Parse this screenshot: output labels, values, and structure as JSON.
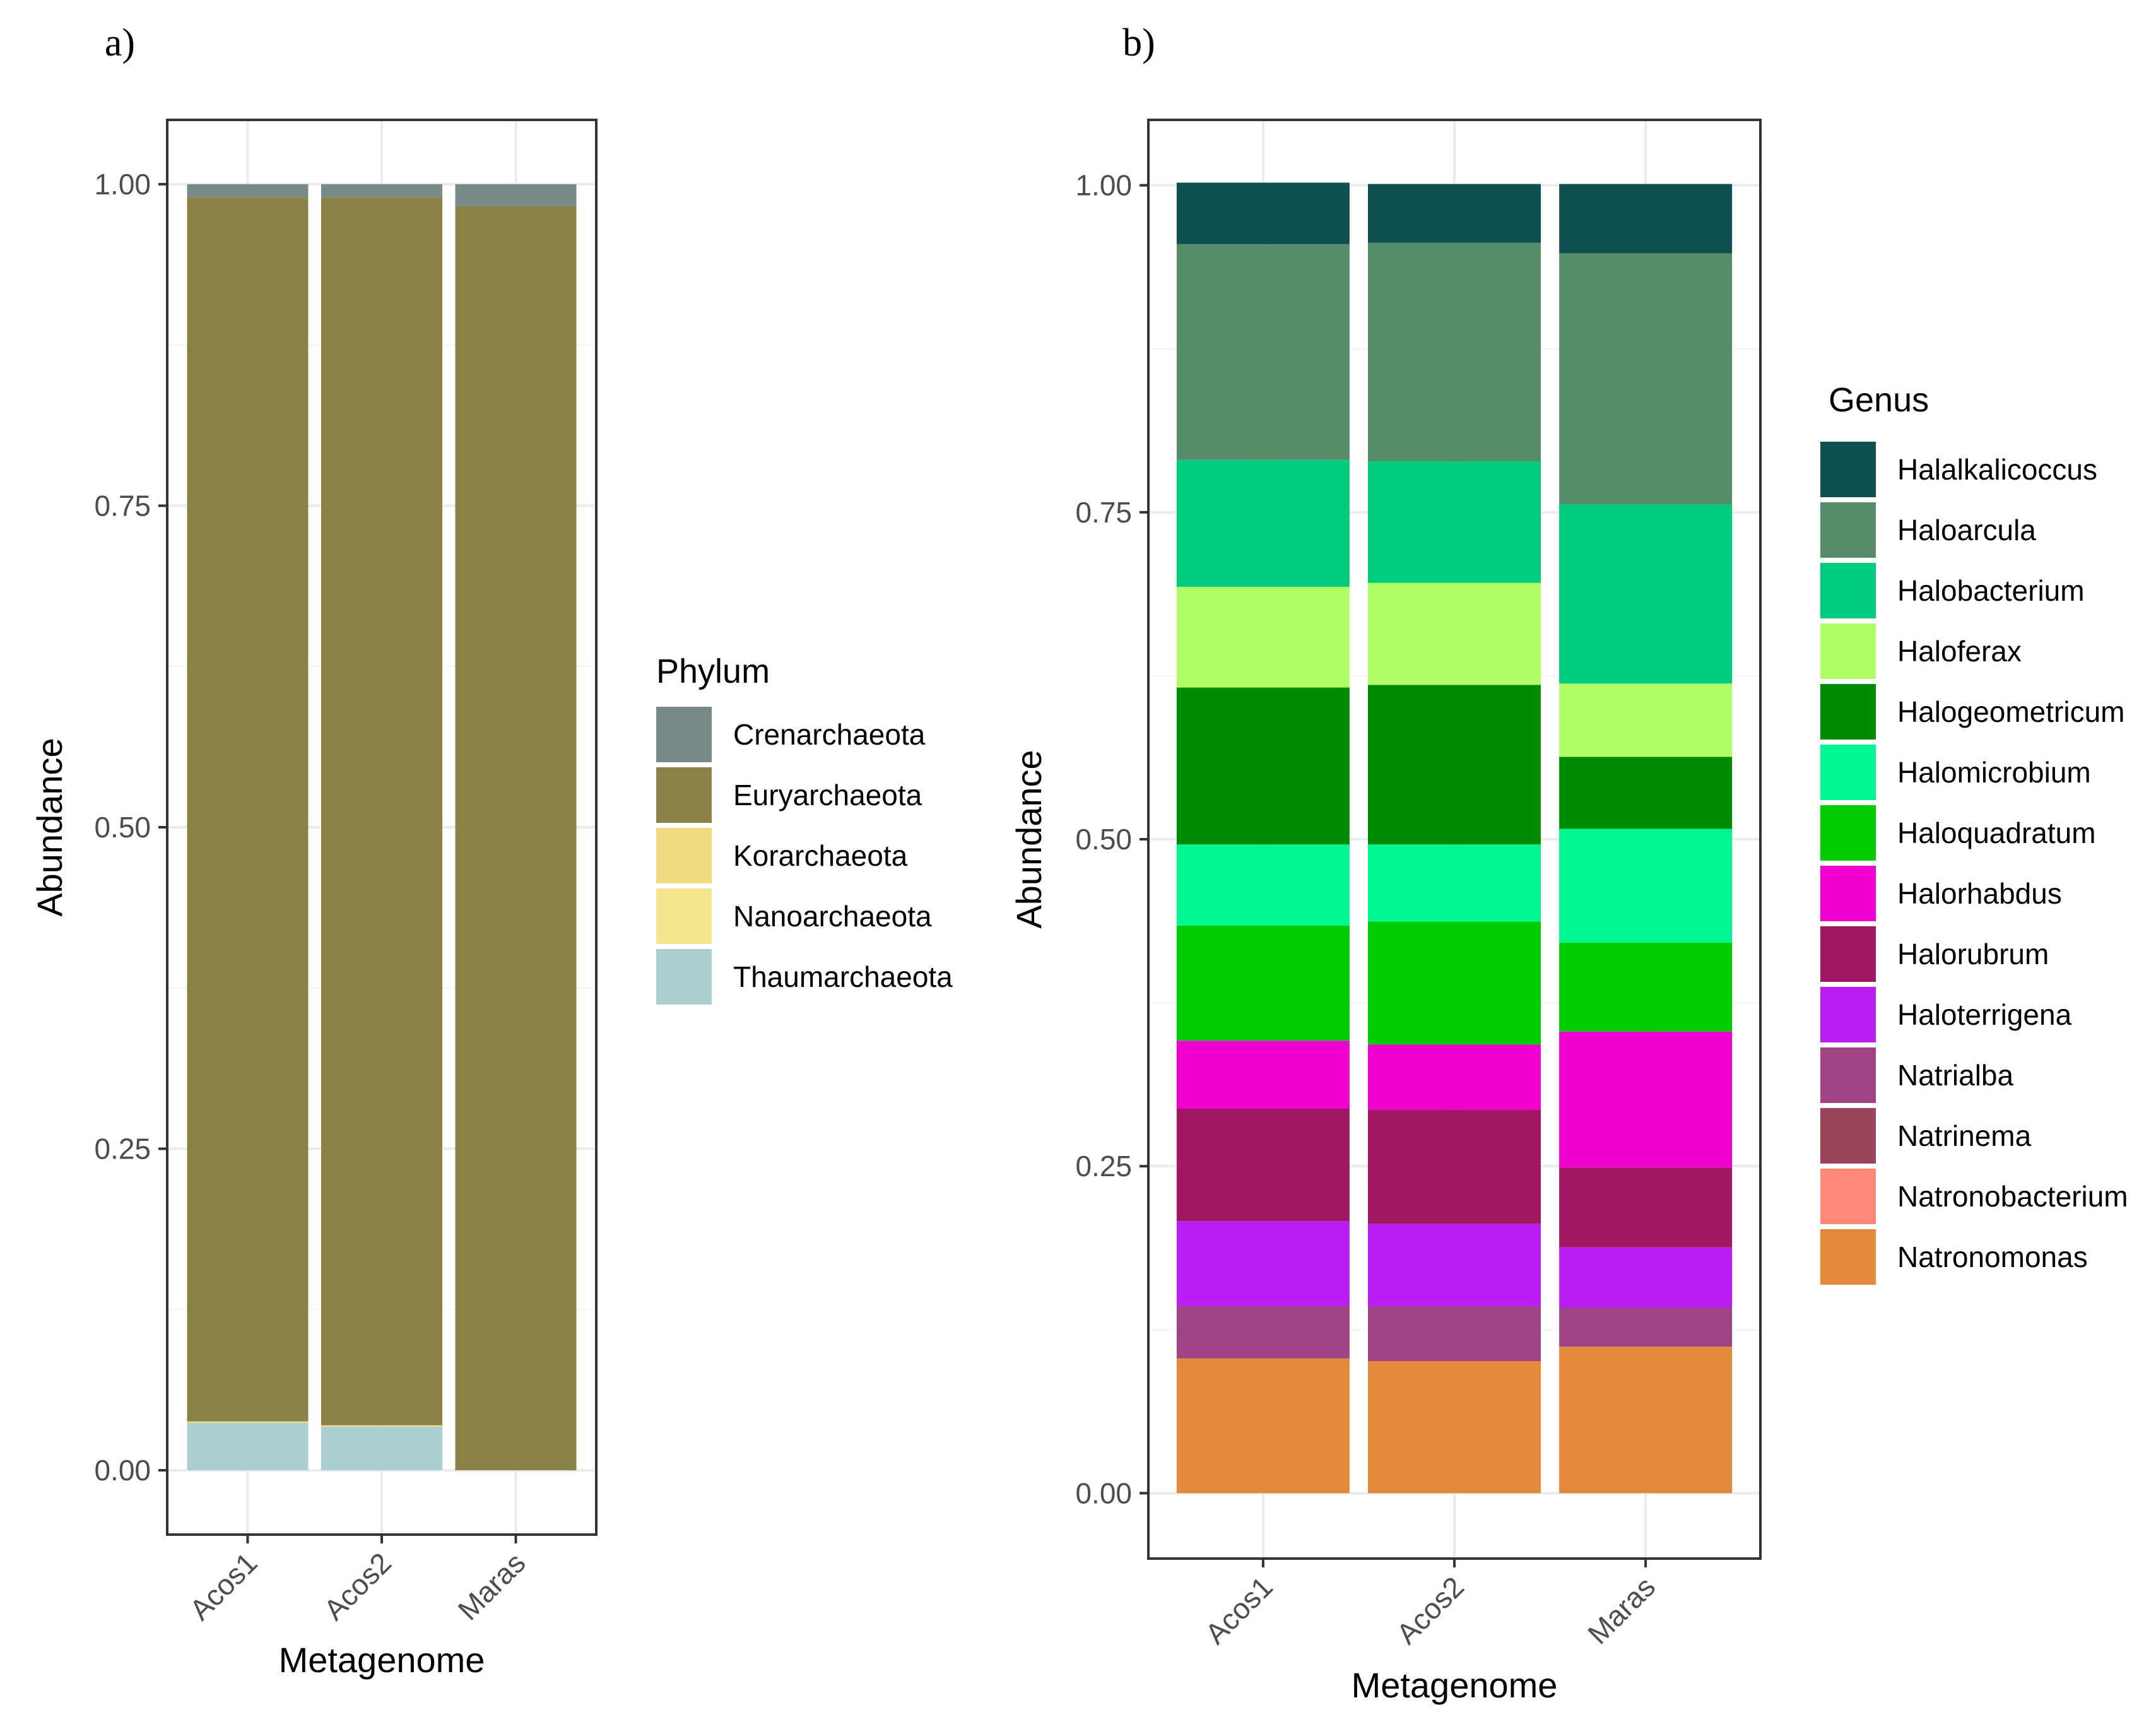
{
  "chart_data": [
    {
      "type": "bar",
      "stacked": true,
      "panel_label": "a)",
      "xlabel": "Metagenome",
      "ylabel": "Abundance",
      "ylim": [
        -0.05,
        1.05
      ],
      "yticks": [
        0.0,
        0.25,
        0.5,
        0.75,
        1.0
      ],
      "ytick_labels": [
        "0.00",
        "0.25",
        "0.50",
        "0.75",
        "1.00"
      ],
      "categories": [
        "Acos1",
        "Acos2",
        "Maras"
      ],
      "legend_title": "Phylum",
      "legend_position": "right",
      "series": [
        {
          "name": "Crenarchaeota",
          "color": "#778b8b",
          "values": [
            0.01,
            0.01,
            0.017
          ]
        },
        {
          "name": "Euryarchaeota",
          "color": "#8b8046",
          "values": [
            0.952,
            0.955,
            0.983
          ]
        },
        {
          "name": "Korarchaeota",
          "color": "#f2dc82",
          "values": [
            0.001,
            0.001,
            0.0
          ]
        },
        {
          "name": "Nanoarchaeota",
          "color": "#f2e68c",
          "values": [
            0.0,
            0.0,
            0.0
          ]
        },
        {
          "name": "Thaumarchaeota",
          "color": "#abcfcf",
          "values": [
            0.037,
            0.034,
            0.0
          ]
        }
      ]
    },
    {
      "type": "bar",
      "stacked": true,
      "panel_label": "b)",
      "xlabel": "Metagenome",
      "ylabel": "Abundance",
      "ylim": [
        -0.05,
        1.05
      ],
      "yticks": [
        0.0,
        0.25,
        0.5,
        0.75,
        1.0
      ],
      "ytick_labels": [
        "0.00",
        "0.25",
        "0.50",
        "0.75",
        "1.00"
      ],
      "categories": [
        "Acos1",
        "Acos2",
        "Maras"
      ],
      "legend_title": "Genus",
      "legend_position": "right",
      "series": [
        {
          "name": "Halalkalicoccus",
          "color": "#0e4f4f",
          "values": [
            0.047,
            0.045,
            0.053
          ]
        },
        {
          "name": "Haloarcula",
          "color": "#578c6a",
          "values": [
            0.165,
            0.167,
            0.192
          ]
        },
        {
          "name": "Halobacterium",
          "color": "#00cc7d",
          "values": [
            0.097,
            0.093,
            0.137
          ]
        },
        {
          "name": "Haloferax",
          "color": "#b1ff66",
          "values": [
            0.077,
            0.078,
            0.056
          ]
        },
        {
          "name": "Halogeometricum",
          "color": "#008b00",
          "values": [
            0.12,
            0.122,
            0.055
          ]
        },
        {
          "name": "Halomicrobium",
          "color": "#00f593",
          "values": [
            0.062,
            0.059,
            0.087
          ]
        },
        {
          "name": "Haloquadratum",
          "color": "#00cd00",
          "values": [
            0.088,
            0.094,
            0.068
          ]
        },
        {
          "name": "Halorhabdus",
          "color": "#f000cf",
          "values": [
            0.052,
            0.05,
            0.104
          ]
        },
        {
          "name": "Halorubrum",
          "color": "#a0165f",
          "values": [
            0.086,
            0.087,
            0.061
          ]
        },
        {
          "name": "Haloterrigena",
          "color": "#b91ef4",
          "values": [
            0.065,
            0.063,
            0.046
          ]
        },
        {
          "name": "Natrialba",
          "color": "#9e4486",
          "values": [
            0.04,
            0.042,
            0.03
          ]
        },
        {
          "name": "Natrinema",
          "color": "#9a4658",
          "values": [
            0.0,
            0.0,
            0.0
          ]
        },
        {
          "name": "Natronobacterium",
          "color": "#ff8878",
          "values": [
            0.0,
            0.0,
            0.0
          ]
        },
        {
          "name": "Natronomonas",
          "color": "#e2893a",
          "values": [
            0.103,
            0.101,
            0.112
          ]
        }
      ]
    }
  ]
}
